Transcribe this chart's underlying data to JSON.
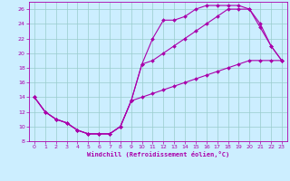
{
  "xlabel": "Windchill (Refroidissement éolien,°C)",
  "bg_color": "#cceeff",
  "line_color": "#aa00aa",
  "grid_color": "#99cccc",
  "xlim": [
    -0.5,
    23.5
  ],
  "ylim": [
    8,
    27
  ],
  "xticks": [
    0,
    1,
    2,
    3,
    4,
    5,
    6,
    7,
    8,
    9,
    10,
    11,
    12,
    13,
    14,
    15,
    16,
    17,
    18,
    19,
    20,
    21,
    22,
    23
  ],
  "yticks": [
    8,
    10,
    12,
    14,
    16,
    18,
    20,
    22,
    24,
    26
  ],
  "line1_x": [
    0,
    1,
    2,
    3,
    4,
    5,
    6,
    7,
    8,
    9,
    10,
    11,
    12,
    13,
    14,
    15,
    16,
    17,
    18,
    19,
    20,
    21,
    22,
    23
  ],
  "line1_y": [
    14,
    12,
    11,
    10.5,
    9.5,
    9,
    9,
    9,
    10,
    13.5,
    18.5,
    22,
    24.5,
    24.5,
    25,
    26,
    26.5,
    26.5,
    26.5,
    26.5,
    26,
    23.5,
    21,
    19
  ],
  "line2_x": [
    0,
    1,
    2,
    3,
    4,
    5,
    6,
    7,
    8,
    9,
    10,
    11,
    12,
    13,
    14,
    15,
    16,
    17,
    18,
    19,
    20,
    21,
    22,
    23
  ],
  "line2_y": [
    14,
    12,
    11,
    10.5,
    9.5,
    9,
    9,
    9,
    10,
    13.5,
    18.5,
    19,
    20,
    21,
    22,
    23,
    24,
    25,
    26,
    26,
    26,
    24,
    21,
    19
  ],
  "line3_x": [
    0,
    1,
    2,
    3,
    4,
    5,
    6,
    7,
    8,
    9,
    10,
    11,
    12,
    13,
    14,
    15,
    16,
    17,
    18,
    19,
    20,
    21,
    22,
    23
  ],
  "line3_y": [
    14,
    12,
    11,
    10.5,
    9.5,
    9,
    9,
    9,
    10,
    13.5,
    14,
    14.5,
    15,
    15.5,
    16,
    16.5,
    17,
    17.5,
    18,
    18.5,
    19,
    19,
    19,
    19
  ]
}
